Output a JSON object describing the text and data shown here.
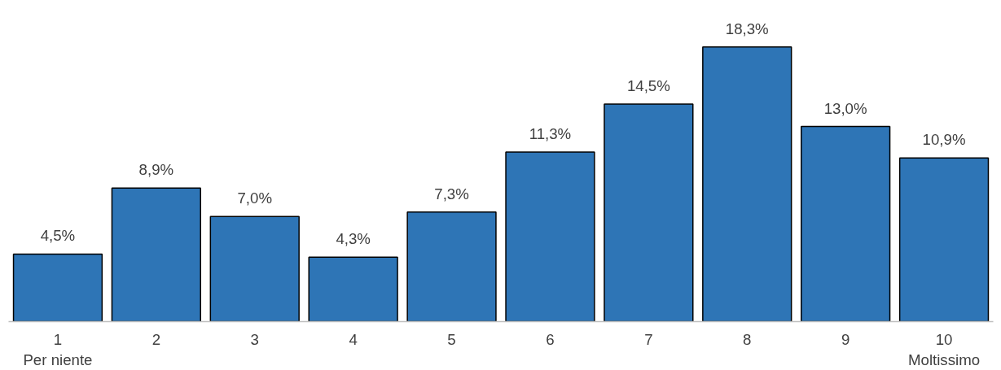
{
  "chart_data": {
    "type": "bar",
    "categories": [
      "1\nPer niente",
      "2",
      "3",
      "4",
      "5",
      "6",
      "7",
      "8",
      "9",
      "10\nMoltissimo"
    ],
    "values": [
      4.5,
      8.9,
      7.0,
      4.3,
      7.3,
      11.3,
      14.5,
      18.3,
      13.0,
      10.9
    ],
    "color": "#2e75b6",
    "value_labels": [
      "4,5%",
      "8,9%",
      "7,0%",
      "4,3%",
      "7,3%",
      "11,3%",
      "14,5%",
      "18,3%",
      "13,0%",
      "10,9%"
    ],
    "grid": false
  }
}
